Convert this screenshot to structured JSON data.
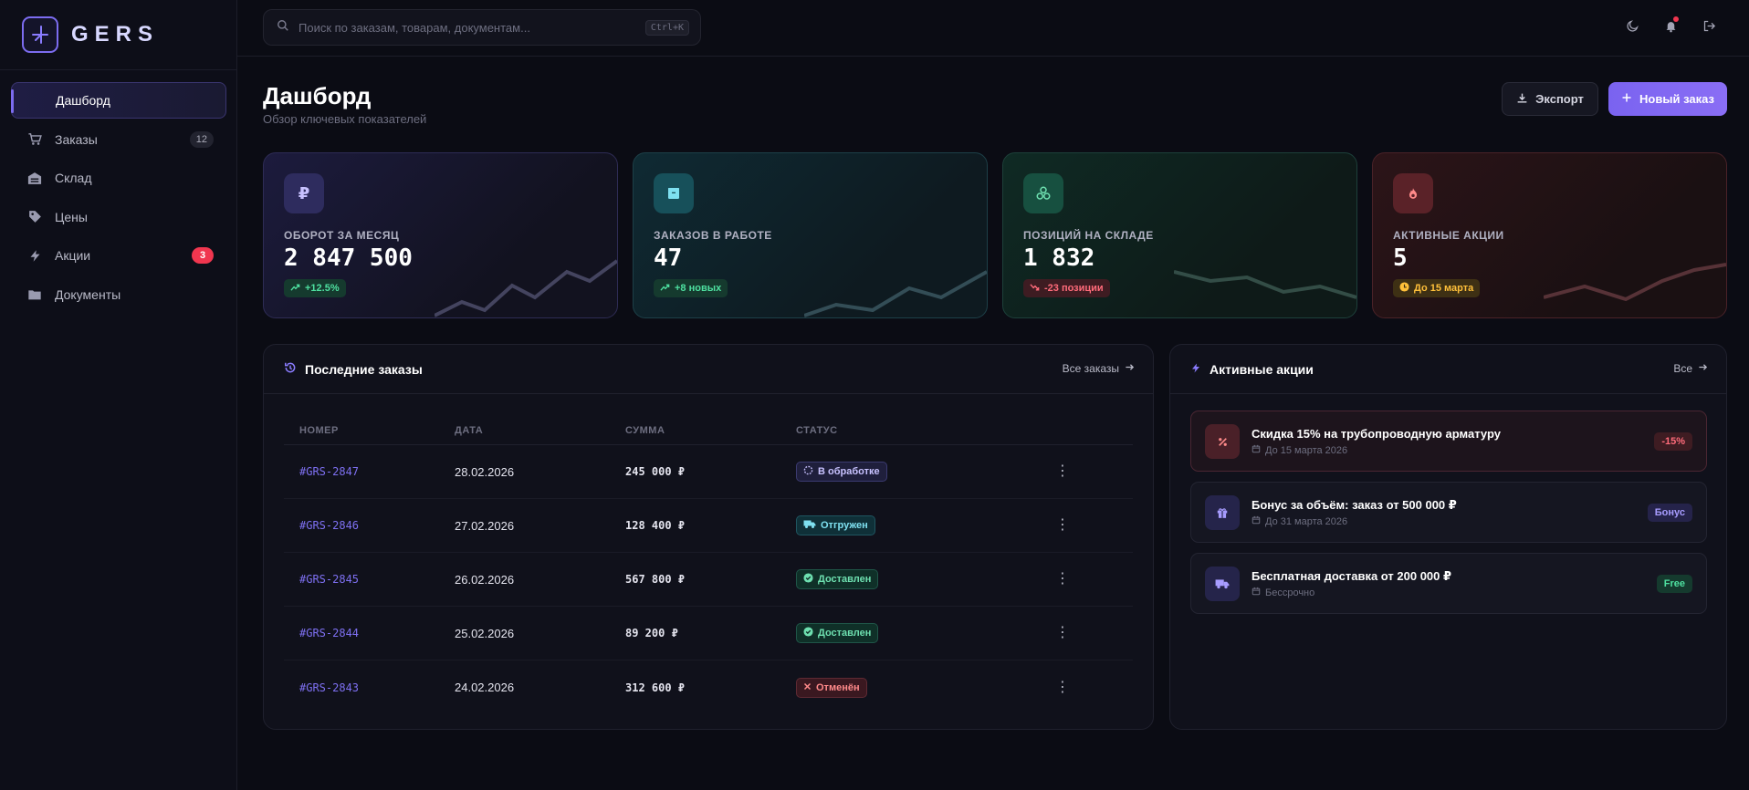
{
  "app": {
    "logo_text": "GERS"
  },
  "sidebar": {
    "items": [
      {
        "label": "Дашборд",
        "icon": "dashboard-icon",
        "badge": ""
      },
      {
        "label": "Заказы",
        "icon": "cart-icon",
        "badge": "12"
      },
      {
        "label": "Склад",
        "icon": "warehouse-icon",
        "badge": ""
      },
      {
        "label": "Цены",
        "icon": "tag-icon",
        "badge": ""
      },
      {
        "label": "Акции",
        "icon": "bolt-icon",
        "badge": "3"
      },
      {
        "label": "Документы",
        "icon": "folder-icon",
        "badge": ""
      }
    ]
  },
  "topbar": {
    "search_placeholder": "Поиск по заказам, товарам, документам...",
    "search_shortcut": "Ctrl+K",
    "icons": [
      "moon-icon",
      "bell-icon",
      "logout-icon"
    ]
  },
  "header": {
    "title": "Дашборд",
    "subtitle": "Обзор ключевых показателей",
    "export_label": "Экспорт",
    "new_order_label": "Новый заказ"
  },
  "stats": [
    {
      "label": "ОБОРОТ ЗА МЕСЯЦ",
      "value": "2 847 500",
      "pill": "+12.5%",
      "icon": "ruble-icon",
      "trend": "up",
      "color": "#7c6cf0"
    },
    {
      "label": "ЗАКАЗОВ В РАБОТЕ",
      "value": "47",
      "pill": "+8 новых",
      "icon": "box-icon",
      "trend": "up",
      "color": "#3cc8e0"
    },
    {
      "label": "ПОЗИЦИЙ НА СКЛАДЕ",
      "value": "1 832",
      "pill": "-23 позиции",
      "icon": "cubes-icon",
      "trend": "down",
      "color": "#3ccf9a"
    },
    {
      "label": "АКТИВНЫЕ АКЦИИ",
      "value": "5",
      "pill": "До 15 марта",
      "icon": "fire-icon",
      "trend": "clock",
      "color": "#f06070"
    }
  ],
  "orders": {
    "title": "Последние заказы",
    "link": "Все заказы",
    "columns": [
      "НОМЕР",
      "ДАТА",
      "СУММА",
      "СТАТУС"
    ],
    "rows": [
      {
        "id": "#GRS-2847",
        "date": "28.02.2026",
        "sum": "245 000 ₽",
        "status": "В обработке",
        "status_kind": "processing"
      },
      {
        "id": "#GRS-2846",
        "date": "27.02.2026",
        "sum": "128 400 ₽",
        "status": "Отгружен",
        "status_kind": "shipped"
      },
      {
        "id": "#GRS-2845",
        "date": "26.02.2026",
        "sum": "567 800 ₽",
        "status": "Доставлен",
        "status_kind": "delivered"
      },
      {
        "id": "#GRS-2844",
        "date": "25.02.2026",
        "sum": "89 200 ₽",
        "status": "Доставлен",
        "status_kind": "delivered"
      },
      {
        "id": "#GRS-2843",
        "date": "24.02.2026",
        "sum": "312 600 ₽",
        "status": "Отменён",
        "status_kind": "cancelled"
      }
    ]
  },
  "promos": {
    "title": "Активные акции",
    "link": "Все",
    "items": [
      {
        "title": "Скидка 15% на трубопроводную арматуру",
        "sub": "До 15 марта 2026",
        "badge": "-15%",
        "icon": "percent-icon"
      },
      {
        "title": "Бонус за объём: заказ от 500 000 ₽",
        "sub": "До 31 марта 2026",
        "badge": "Бонус",
        "icon": "gift-icon"
      },
      {
        "title": "Бесплатная доставка от 200 000 ₽",
        "sub": "Бессрочно",
        "badge": "Free",
        "icon": "truck-icon"
      }
    ]
  }
}
